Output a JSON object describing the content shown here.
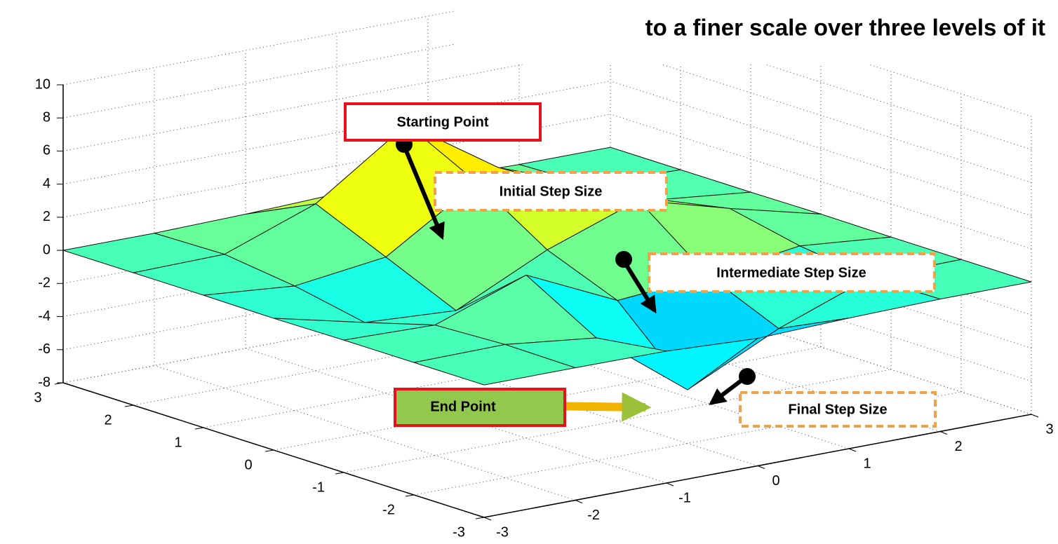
{
  "chart_data": {
    "type": "surface",
    "title": "to a finer scale over three levels of it",
    "x": [
      -3,
      -2,
      -1,
      0,
      1,
      2,
      3
    ],
    "y": [
      -3,
      -2,
      -1,
      0,
      1,
      2,
      3
    ],
    "z": [
      [
        0,
        0,
        -0.03,
        -0.3,
        -0.11,
        0,
        0
      ],
      [
        0,
        0.05,
        -0.59,
        -4.76,
        -2.1,
        -0.06,
        0
      ],
      [
        0,
        -0.13,
        1.85,
        -0.72,
        -0.27,
        0.5,
        0
      ],
      [
        -0.04,
        -1.33,
        -1.65,
        0.98,
        2.94,
        1.41,
        0.03
      ],
      [
        0,
        -0.48,
        0.23,
        3.69,
        2.44,
        0.58,
        0
      ],
      [
        0,
        0.08,
        2.09,
        5.86,
        2.21,
        0.13,
        0
      ],
      [
        0,
        0,
        0.11,
        0.3,
        0.11,
        0,
        0
      ]
    ],
    "xlim": [
      -3,
      3
    ],
    "ylim": [
      -3,
      3
    ],
    "zlim": [
      -8,
      10
    ],
    "xticks": [
      -3,
      -2,
      -1,
      0,
      1,
      2,
      3
    ],
    "yticks": [
      -3,
      -2,
      -1,
      0,
      1,
      2,
      3
    ],
    "zticks": [
      -8,
      -6,
      -4,
      -2,
      0,
      2,
      4,
      6,
      8,
      10
    ],
    "grid": true,
    "colormap": "jet",
    "annotations": [
      "Starting Point",
      "Initial Step Size",
      "Intermediate Step Size",
      "End Point",
      "Final Step Size"
    ]
  }
}
